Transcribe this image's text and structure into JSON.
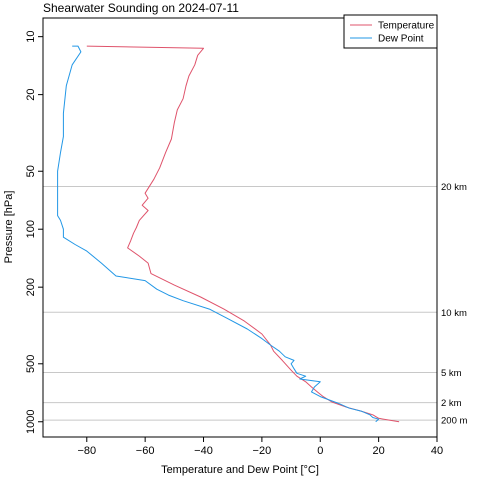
{
  "chart_data": {
    "type": "line",
    "title": "Shearwater Sounding on 2024-07-11",
    "xlabel": "Temperature and Dew Point [°C]",
    "ylabel": "Pressure [hPa]",
    "xlim": [
      -95,
      40
    ],
    "ylim": [
      1200,
      8
    ],
    "y_scale": "log",
    "y_reversed": true,
    "xticks": [
      -80,
      -60,
      -40,
      -20,
      0,
      20,
      40
    ],
    "yticks": [
      10,
      20,
      50,
      100,
      200,
      500,
      1000
    ],
    "grid": false,
    "legend": "top-right",
    "series": [
      {
        "name": "Temperature",
        "color": "#df536b",
        "points": [
          [
            27,
            1000
          ],
          [
            20,
            960
          ],
          [
            18,
            920
          ],
          [
            14,
            880
          ],
          [
            9,
            840
          ],
          [
            4,
            790
          ],
          [
            1,
            740
          ],
          [
            -1,
            700
          ],
          [
            -3,
            660
          ],
          [
            -5,
            620
          ],
          [
            -8,
            580
          ],
          [
            -10,
            540
          ],
          [
            -13,
            480
          ],
          [
            -16,
            430
          ],
          [
            -17,
            400
          ],
          [
            -20,
            350
          ],
          [
            -26,
            300
          ],
          [
            -33,
            260
          ],
          [
            -41,
            225
          ],
          [
            -50,
            195
          ],
          [
            -58,
            170
          ],
          [
            -59,
            150
          ],
          [
            -62,
            138
          ],
          [
            -66,
            125
          ],
          [
            -65,
            115
          ],
          [
            -64,
            105
          ],
          [
            -63,
            98
          ],
          [
            -62,
            90
          ],
          [
            -59,
            80
          ],
          [
            -61,
            75
          ],
          [
            -59,
            69
          ],
          [
            -60,
            65
          ],
          [
            -57,
            55
          ],
          [
            -55,
            48
          ],
          [
            -53,
            40
          ],
          [
            -51,
            34
          ],
          [
            -50,
            28
          ],
          [
            -49,
            24
          ],
          [
            -47,
            21
          ],
          [
            -46,
            18
          ],
          [
            -45,
            16
          ],
          [
            -43,
            14
          ],
          [
            -42,
            12.5
          ],
          [
            -40,
            11.5
          ],
          [
            -80,
            11.2
          ]
        ]
      },
      {
        "name": "Dew Point",
        "color": "#2297e6",
        "points": [
          [
            19,
            1000
          ],
          [
            20,
            970
          ],
          [
            18,
            950
          ],
          [
            17,
            920
          ],
          [
            14,
            880
          ],
          [
            10,
            850
          ],
          [
            6,
            800
          ],
          [
            0,
            740
          ],
          [
            -3,
            700
          ],
          [
            -2,
            660
          ],
          [
            0,
            620
          ],
          [
            -7,
            600
          ],
          [
            -5,
            580
          ],
          [
            -8,
            560
          ],
          [
            -9,
            530
          ],
          [
            -10,
            500
          ],
          [
            -9,
            480
          ],
          [
            -12,
            460
          ],
          [
            -14,
            430
          ],
          [
            -17,
            400
          ],
          [
            -20,
            370
          ],
          [
            -25,
            330
          ],
          [
            -32,
            290
          ],
          [
            -38,
            260
          ],
          [
            -47,
            235
          ],
          [
            -52,
            220
          ],
          [
            -56,
            205
          ],
          [
            -60,
            185
          ],
          [
            -70,
            175
          ],
          [
            -75,
            150
          ],
          [
            -80,
            130
          ],
          [
            -84,
            120
          ],
          [
            -88,
            110
          ],
          [
            -88,
            100
          ],
          [
            -89,
            90
          ],
          [
            -90,
            85
          ],
          [
            -90,
            80
          ],
          [
            -90,
            70
          ],
          [
            -90,
            60
          ],
          [
            -90,
            50
          ],
          [
            -89,
            40
          ],
          [
            -88,
            33
          ],
          [
            -88,
            25
          ],
          [
            -87,
            18
          ],
          [
            -85,
            14
          ],
          [
            -82,
            12
          ],
          [
            -83,
            11.2
          ],
          [
            -85,
            11.2
          ]
        ]
      }
    ],
    "altitude_lines": [
      {
        "label": "200 m",
        "pressure": 980
      },
      {
        "label": "2 km",
        "pressure": 795
      },
      {
        "label": "5 km",
        "pressure": 555
      },
      {
        "label": "10 km",
        "pressure": 270
      },
      {
        "label": "20 km",
        "pressure": 60
      }
    ]
  }
}
